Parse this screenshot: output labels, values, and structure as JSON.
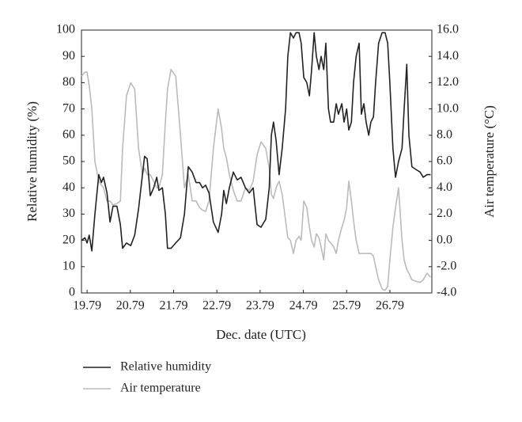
{
  "chart_data": {
    "type": "line",
    "xlabel": "Dec. date (UTC)",
    "ylabel": "Relative humidity (%)",
    "y2label": "Air temperature (°C)",
    "x": [
      19.66,
      19.74,
      19.79,
      19.84,
      19.9,
      19.97,
      20.06,
      20.12,
      20.17,
      20.25,
      20.32,
      20.39,
      20.48,
      20.56,
      20.61,
      20.7,
      20.8,
      20.89,
      20.98,
      21.07,
      21.12,
      21.18,
      21.25,
      21.33,
      21.4,
      21.45,
      21.53,
      21.6,
      21.65,
      21.73,
      21.84,
      21.95,
      22.04,
      22.13,
      22.22,
      22.31,
      22.39,
      22.46,
      22.53,
      22.61,
      22.71,
      22.82,
      22.9,
      22.95,
      23.01,
      23.08,
      23.17,
      23.26,
      23.35,
      23.45,
      23.54,
      23.63,
      23.72,
      23.81,
      23.92,
      24.0,
      24.05,
      24.1,
      24.16,
      24.23,
      24.3,
      24.38,
      24.43,
      24.49,
      24.56,
      24.62,
      24.69,
      24.74,
      24.8,
      24.87,
      24.93,
      24.98,
      25.04,
      25.09,
      25.15,
      25.2,
      25.26,
      25.31,
      25.37,
      25.42,
      25.49,
      25.55,
      25.6,
      25.68,
      25.73,
      25.79,
      25.84,
      25.9,
      25.95,
      26.01,
      26.08,
      26.13,
      26.19,
      26.24,
      26.3,
      26.35,
      26.41,
      26.46,
      26.53,
      26.61,
      26.68,
      26.74,
      26.79,
      26.86,
      26.92,
      26.99,
      27.07,
      27.12,
      27.18,
      27.23,
      27.3,
      27.39,
      27.49,
      27.56,
      27.65,
      27.73
    ],
    "series": [
      {
        "name": "Relative humidity",
        "color": "#222222",
        "axis": "y",
        "values": [
          20,
          21,
          19,
          22,
          16,
          30,
          45,
          42,
          44,
          38,
          27,
          33,
          33,
          26,
          17,
          19,
          18,
          22,
          32,
          45,
          52,
          51,
          37,
          40,
          44,
          39,
          40,
          30,
          17,
          17,
          19,
          21,
          30,
          48,
          46,
          42,
          42,
          40,
          41,
          38,
          27,
          23,
          30,
          39,
          34,
          40,
          46,
          43,
          44,
          40,
          38,
          40,
          26,
          25,
          28,
          40,
          60,
          65,
          58,
          45,
          55,
          70,
          90,
          99,
          97,
          99,
          99,
          95,
          82,
          80,
          75,
          85,
          99,
          90,
          85,
          90,
          85,
          95,
          70,
          65,
          65,
          72,
          68,
          72,
          65,
          70,
          62,
          65,
          80,
          90,
          95,
          68,
          72,
          65,
          60,
          65,
          67,
          80,
          95,
          99,
          99,
          95,
          80,
          55,
          44,
          50,
          55,
          70,
          87,
          60,
          48,
          47,
          46,
          44,
          45,
          45
        ]
      },
      {
        "name": "Air temperature",
        "color": "#bbbbbb",
        "axis": "y2",
        "values": [
          12.5,
          12.8,
          12.8,
          11.8,
          10,
          6,
          4.5,
          4.2,
          4,
          3,
          3,
          2.7,
          2.8,
          3,
          7,
          11,
          12,
          11.5,
          7,
          5,
          5.5,
          5,
          5,
          4.5,
          4,
          4,
          5,
          9,
          11.5,
          13,
          12.5,
          8,
          4,
          5,
          3,
          3,
          2.5,
          2.3,
          2.2,
          3,
          7,
          10,
          8.5,
          7,
          6.3,
          5,
          3.8,
          3,
          3,
          4,
          3.8,
          4.5,
          6.5,
          7.5,
          7,
          5.5,
          3.5,
          3.2,
          4,
          4.5,
          3.5,
          1.5,
          0.2,
          0,
          -1,
          0,
          0.3,
          0,
          3,
          2.5,
          1,
          0,
          -0.5,
          0.5,
          0.2,
          -0.5,
          -1.5,
          0.5,
          0,
          -0.2,
          -0.5,
          -1,
          0,
          1,
          1.5,
          2.5,
          4.5,
          3,
          1.5,
          0,
          -1,
          -1,
          -1,
          -1,
          -1,
          -1,
          -1.2,
          -2,
          -3,
          -3.7,
          -3.8,
          -3.5,
          -1.5,
          1,
          2.5,
          4,
          0,
          -1.5,
          -2.2,
          -2.5,
          -3,
          -3.1,
          -3.2,
          -3,
          -2.5,
          -2.8
        ]
      }
    ],
    "xlim": [
      19.66,
      27.76
    ],
    "xticks": [
      19.79,
      20.79,
      21.79,
      22.79,
      23.79,
      24.79,
      25.79,
      26.79
    ],
    "ylim": [
      0,
      100
    ],
    "yticks": [
      0,
      10,
      20,
      30,
      40,
      50,
      60,
      70,
      80,
      90,
      100
    ],
    "y2lim": [
      -4,
      16
    ],
    "y2ticks": [
      {
        "value": -4,
        "label": "-4.0"
      },
      {
        "value": -2,
        "label": "-2.0"
      },
      {
        "value": 0,
        "label": "0.0"
      },
      {
        "value": 2,
        "label": "2.0"
      },
      {
        "value": 4,
        "label": "4.0"
      },
      {
        "value": 6,
        "label": "6.0"
      },
      {
        "value": 8,
        "label": "8.0"
      },
      {
        "value": 10,
        "label": "10.0"
      },
      {
        "value": 12,
        "label": "12.0"
      },
      {
        "value": 14,
        "label": "14.0"
      },
      {
        "value": 16,
        "label": "16.0"
      }
    ],
    "legend": "bottom-left"
  }
}
